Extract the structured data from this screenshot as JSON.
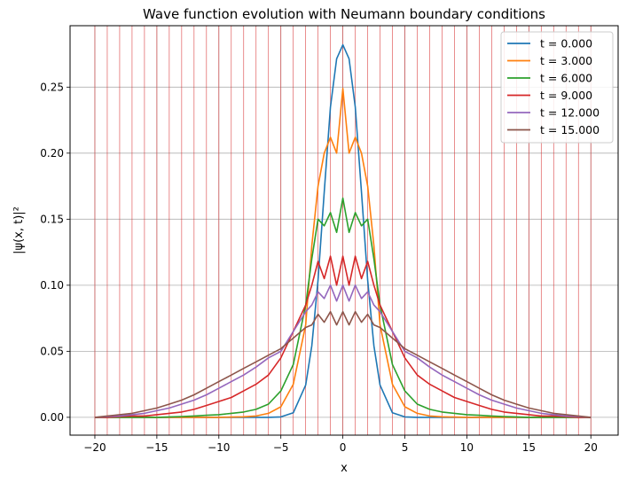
{
  "chart_data": {
    "type": "line",
    "title": "Wave function evolution with Neumann boundary conditions",
    "xlabel": "x",
    "ylabel": "|ψ(x, t)|²",
    "xlim": [
      -22.0,
      22.2
    ],
    "ylim": [
      -0.0135,
      0.2965
    ],
    "xticks": [
      -20,
      -15,
      -10,
      -5,
      0,
      5,
      10,
      15,
      20
    ],
    "xtick_labels": [
      "−20",
      "−15",
      "−10",
      "−5",
      "0",
      "5",
      "10",
      "15",
      "20"
    ],
    "yticks": [
      0.0,
      0.05,
      0.1,
      0.15,
      0.2,
      0.25
    ],
    "ytick_labels": [
      "0.00",
      "0.05",
      "0.10",
      "0.15",
      "0.20",
      "0.25"
    ],
    "grid": true,
    "legend_position": "top-right",
    "red_vertical_lines_x": [
      -20,
      -19,
      -18,
      -17,
      -16,
      -15,
      -14,
      -13,
      -12,
      -11,
      -10,
      -9,
      -8,
      -7,
      -6,
      -5,
      -4,
      -3,
      -2,
      -1,
      0,
      1,
      2,
      3,
      4,
      5,
      6,
      7,
      8,
      9,
      10,
      11,
      12,
      13,
      14,
      15,
      16,
      17,
      18,
      19,
      20
    ],
    "x": [
      -20,
      -19,
      -18,
      -17,
      -16,
      -15,
      -14,
      -13,
      -12,
      -11,
      -10,
      -9,
      -8,
      -7,
      -6,
      -5,
      -4,
      -3,
      -2.5,
      -2,
      -1.5,
      -1,
      -0.5,
      0,
      0.5,
      1,
      1.5,
      2,
      2.5,
      3,
      4,
      5,
      6,
      7,
      8,
      9,
      10,
      11,
      12,
      13,
      14,
      15,
      16,
      17,
      18,
      19,
      20
    ],
    "series": [
      {
        "name": "t = 0.000",
        "color": "#1f77b4",
        "values": [
          0,
          0,
          0,
          0,
          0,
          0,
          0,
          0,
          0,
          0,
          0,
          0,
          0,
          0,
          0,
          0.0003,
          0.0034,
          0.0245,
          0.0542,
          0.1037,
          0.1705,
          0.2349,
          0.2715,
          0.282,
          0.2715,
          0.2349,
          0.1705,
          0.1037,
          0.0542,
          0.0245,
          0.0034,
          0.0003,
          0,
          0,
          0,
          0,
          0,
          0,
          0,
          0,
          0,
          0,
          0,
          0,
          0,
          0,
          0
        ]
      },
      {
        "name": "t = 3.000",
        "color": "#ff7f0e",
        "values": [
          0,
          0,
          0,
          0,
          0,
          0,
          0,
          0,
          0,
          0,
          0,
          0.0002,
          0.0004,
          0.001,
          0.003,
          0.008,
          0.025,
          0.07,
          0.13,
          0.175,
          0.2,
          0.212,
          0.2,
          0.249,
          0.2,
          0.212,
          0.2,
          0.175,
          0.13,
          0.07,
          0.025,
          0.008,
          0.003,
          0.001,
          0.0004,
          0.0002,
          0,
          0,
          0,
          0,
          0,
          0,
          0,
          0,
          0,
          0,
          0
        ]
      },
      {
        "name": "t = 6.000",
        "color": "#2ca02c",
        "values": [
          0,
          0,
          0,
          0,
          0,
          0,
          0.0003,
          0.0006,
          0.001,
          0.0015,
          0.002,
          0.003,
          0.004,
          0.006,
          0.01,
          0.02,
          0.04,
          0.085,
          0.12,
          0.15,
          0.145,
          0.155,
          0.14,
          0.166,
          0.14,
          0.155,
          0.145,
          0.15,
          0.12,
          0.085,
          0.04,
          0.02,
          0.01,
          0.006,
          0.004,
          0.003,
          0.002,
          0.0015,
          0.001,
          0.0006,
          0.0003,
          0,
          0,
          0,
          0,
          0,
          0
        ]
      },
      {
        "name": "t = 9.000",
        "color": "#d62728",
        "values": [
          0,
          0,
          0.0005,
          0.001,
          0.001,
          0.002,
          0.003,
          0.004,
          0.006,
          0.009,
          0.012,
          0.015,
          0.02,
          0.025,
          0.032,
          0.045,
          0.065,
          0.085,
          0.1,
          0.118,
          0.105,
          0.122,
          0.1,
          0.122,
          0.1,
          0.122,
          0.105,
          0.118,
          0.1,
          0.085,
          0.065,
          0.045,
          0.032,
          0.025,
          0.02,
          0.015,
          0.012,
          0.009,
          0.006,
          0.004,
          0.003,
          0.002,
          0.001,
          0.001,
          0.0005,
          0,
          0
        ]
      },
      {
        "name": "t = 12.000",
        "color": "#9467bd",
        "values": [
          0,
          0.0005,
          0.001,
          0.002,
          0.003,
          0.005,
          0.007,
          0.01,
          0.013,
          0.017,
          0.022,
          0.027,
          0.032,
          0.038,
          0.045,
          0.05,
          0.065,
          0.08,
          0.085,
          0.095,
          0.09,
          0.1,
          0.088,
          0.1,
          0.088,
          0.1,
          0.09,
          0.095,
          0.085,
          0.08,
          0.065,
          0.05,
          0.045,
          0.038,
          0.032,
          0.027,
          0.022,
          0.017,
          0.013,
          0.01,
          0.007,
          0.005,
          0.003,
          0.002,
          0.001,
          0.0005,
          0
        ]
      },
      {
        "name": "t = 15.000",
        "color": "#8c564b",
        "values": [
          0,
          0.001,
          0.002,
          0.003,
          0.005,
          0.007,
          0.01,
          0.013,
          0.017,
          0.022,
          0.027,
          0.032,
          0.037,
          0.042,
          0.047,
          0.052,
          0.06,
          0.068,
          0.07,
          0.078,
          0.072,
          0.08,
          0.07,
          0.08,
          0.07,
          0.08,
          0.072,
          0.078,
          0.07,
          0.068,
          0.06,
          0.052,
          0.047,
          0.042,
          0.037,
          0.032,
          0.027,
          0.022,
          0.017,
          0.013,
          0.01,
          0.007,
          0.005,
          0.003,
          0.002,
          0.001,
          0
        ]
      }
    ]
  }
}
